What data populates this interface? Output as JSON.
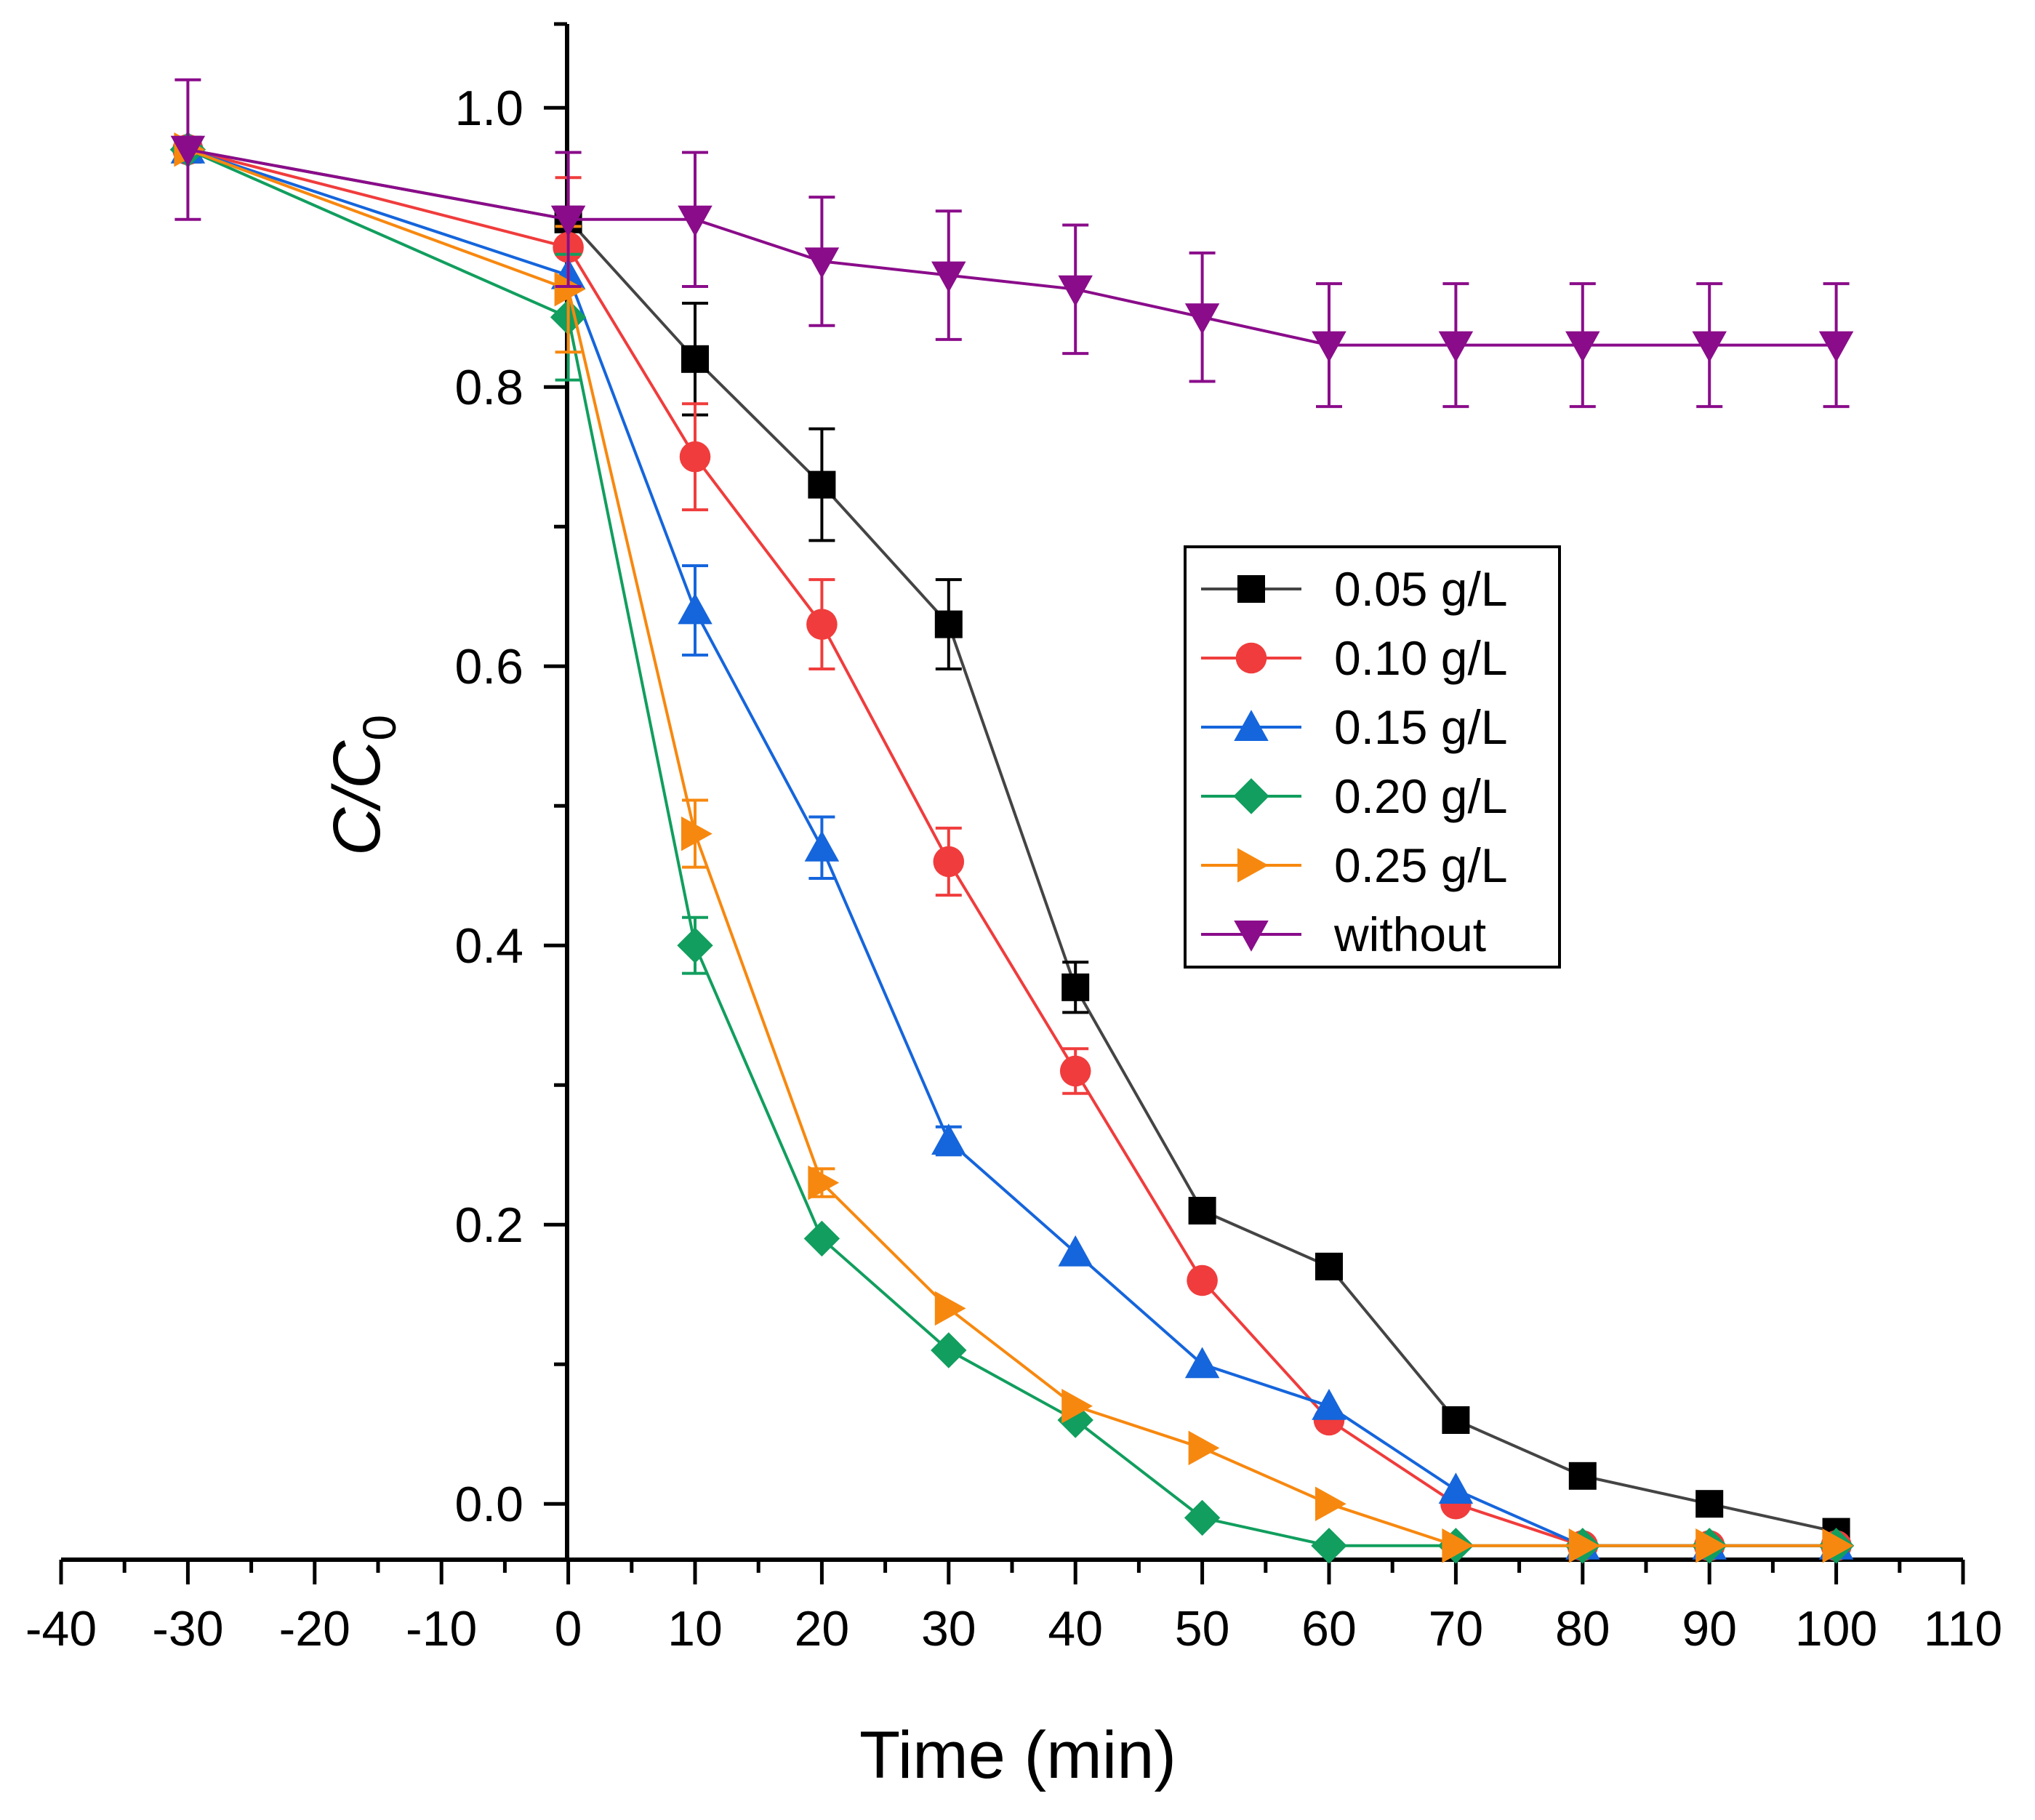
{
  "chart_data": {
    "type": "line",
    "title": "",
    "xlabel": "Time (min)",
    "ylabel": "C/C",
    "ylabel_subscript": "0",
    "xlim": [
      -40,
      110
    ],
    "ylim": [
      -0.04,
      1.06
    ],
    "x_ticks": [
      "-40",
      "-30",
      "-20",
      "-10",
      "0",
      "10",
      "20",
      "30",
      "40",
      "50",
      "60",
      "70",
      "80",
      "90",
      "100",
      "110"
    ],
    "y_ticks": [
      "0.0",
      "0.2",
      "0.4",
      "0.6",
      "0.8",
      "1.0"
    ],
    "legend_position": "center-right",
    "series": [
      {
        "name": "0.05 g/L",
        "color": "#000000",
        "line_color": "#444444",
        "marker": "square",
        "x": [
          -30,
          0,
          10,
          20,
          30,
          40,
          50,
          60,
          70,
          80,
          90,
          100
        ],
        "y": [
          0.97,
          0.92,
          0.82,
          0.73,
          0.63,
          0.37,
          0.21,
          0.17,
          0.06,
          0.02,
          0.0,
          -0.02
        ],
        "err": [
          0.0,
          0.0,
          0.04,
          0.04,
          0.032,
          0.018,
          0.0,
          0.0,
          0.0,
          0.0,
          0.0,
          0.0
        ]
      },
      {
        "name": "0.10 g/L",
        "color": "#F03C3C",
        "line_color": "#F03C3C",
        "marker": "circle",
        "x": [
          -30,
          0,
          10,
          20,
          30,
          40,
          50,
          60,
          70,
          80,
          90,
          100
        ],
        "y": [
          0.97,
          0.9,
          0.75,
          0.63,
          0.46,
          0.31,
          0.16,
          0.06,
          0.0,
          -0.03,
          -0.03,
          -0.03
        ],
        "err": [
          0.0,
          0.05,
          0.038,
          0.032,
          0.024,
          0.016,
          0.0,
          0.0,
          0.0,
          0.0,
          0.0,
          0.0
        ]
      },
      {
        "name": "0.15 g/L",
        "color": "#1565DC",
        "line_color": "#1565DC",
        "marker": "triangle-up",
        "x": [
          -30,
          0,
          10,
          20,
          30,
          40,
          50,
          60,
          70,
          80,
          90,
          100
        ],
        "y": [
          0.97,
          0.88,
          0.64,
          0.47,
          0.26,
          0.18,
          0.1,
          0.07,
          0.01,
          -0.03,
          -0.03,
          -0.03
        ],
        "err": [
          0.0,
          0.0,
          0.032,
          0.022,
          0.01,
          0.0,
          0.0,
          0.0,
          0.0,
          0.0,
          0.0,
          0.0
        ]
      },
      {
        "name": "0.20 g/L",
        "color": "#119E5E",
        "line_color": "#119E5E",
        "marker": "diamond",
        "x": [
          -30,
          0,
          10,
          20,
          30,
          40,
          50,
          60,
          70,
          80,
          90,
          100
        ],
        "y": [
          0.97,
          0.85,
          0.4,
          0.19,
          0.11,
          0.06,
          -0.01,
          -0.03,
          -0.03,
          -0.03,
          -0.03,
          -0.03
        ],
        "err": [
          0.0,
          0.045,
          0.02,
          0.0,
          0.0,
          0.0,
          0.0,
          0.0,
          0.0,
          0.0,
          0.0,
          0.0
        ]
      },
      {
        "name": "0.25 g/L",
        "color": "#F7880F",
        "line_color": "#F7880F",
        "marker": "triangle-right",
        "x": [
          -30,
          0,
          10,
          20,
          30,
          40,
          50,
          60,
          70,
          80,
          90,
          100
        ],
        "y": [
          0.97,
          0.87,
          0.48,
          0.23,
          0.14,
          0.07,
          0.04,
          0.0,
          -0.03,
          -0.03,
          -0.03,
          -0.03
        ],
        "err": [
          0.0,
          0.045,
          0.024,
          0.01,
          0.0,
          0.0,
          0.0,
          0.0,
          0.0,
          0.0,
          0.0,
          0.0
        ]
      },
      {
        "name": "without",
        "color": "#8A0C8A",
        "line_color": "#8A0C8A",
        "marker": "triangle-down",
        "x": [
          -30,
          0,
          10,
          20,
          30,
          40,
          50,
          60,
          70,
          80,
          90,
          100
        ],
        "y": [
          0.97,
          0.92,
          0.92,
          0.89,
          0.88,
          0.87,
          0.85,
          0.83,
          0.83,
          0.83,
          0.83,
          0.83
        ],
        "err": [
          0.05,
          0.048,
          0.048,
          0.046,
          0.046,
          0.046,
          0.046,
          0.044,
          0.044,
          0.044,
          0.044,
          0.044
        ]
      }
    ]
  }
}
